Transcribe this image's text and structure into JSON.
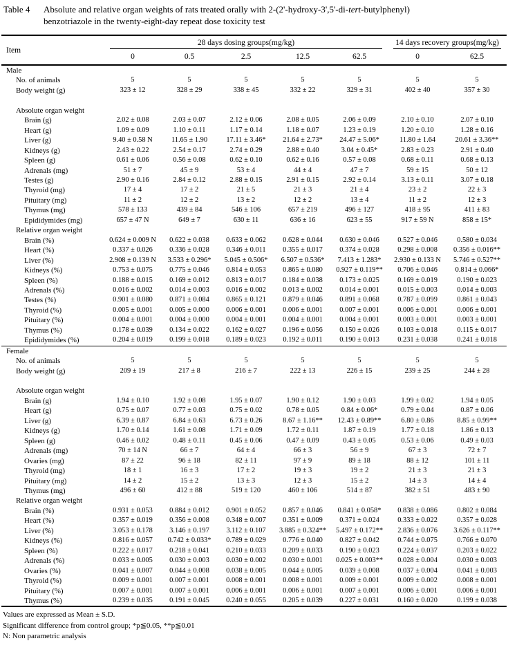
{
  "title": {
    "label": "Table 4",
    "line1_before_tert": "Absolute and relative organ weights of rats treated orally with 2-(2'-hydroxy-3',5'-di-",
    "line1_tert": "tert",
    "line1_after_tert": "-butylphenyl)",
    "line2": "benzotriazole in the twenty-eight-day repeat dose toxicity test"
  },
  "header": {
    "item_label": "Item",
    "groups": [
      {
        "label": "28 days dosing groups(mg/kg)",
        "doses": [
          "0",
          "0.5",
          "2.5",
          "12.5",
          "62.5"
        ]
      },
      {
        "label": "14 days recovery groups(mg/kg)",
        "doses": [
          "0",
          "62.5"
        ]
      }
    ]
  },
  "sections": [
    {
      "name": "Male",
      "rows": [
        {
          "label": "Male",
          "indent": 0
        },
        {
          "label": "No. of animals",
          "indent": 1,
          "values": [
            "5",
            "5",
            "5",
            "5",
            "5",
            "5",
            "5"
          ]
        },
        {
          "label": "Body weight (g)",
          "indent": 1,
          "values": [
            "323 ± 12",
            "328 ± 29",
            "338 ± 45",
            "332 ± 22",
            "329 ± 31",
            "402 ± 40",
            "357 ± 30"
          ]
        },
        {
          "label": "",
          "indent": 0
        },
        {
          "label": "Absolute organ weight",
          "indent": 1
        },
        {
          "label": "Brain (g)",
          "indent": 2,
          "values": [
            "2.02 ± 0.08",
            "2.03 ± 0.07",
            "2.12 ± 0.06",
            "2.08 ± 0.05",
            "2.06 ± 0.09",
            "2.10 ± 0.10",
            "2.07 ± 0.10"
          ]
        },
        {
          "label": "Heart (g)",
          "indent": 2,
          "values": [
            "1.09 ± 0.09",
            "1.10 ± 0.11",
            "1.17 ± 0.14",
            "1.18 ± 0.07",
            "1.23 ± 0.19",
            "1.20 ± 0.10",
            "1.28 ± 0.16"
          ]
        },
        {
          "label": "Liver (g)",
          "indent": 2,
          "values": [
            "9.40 ± 0.58 N",
            "11.65 ± 1.90",
            "17.11 ± 3.46*",
            "21.64 ± 2.73*",
            "24.47 ± 5.06*",
            "11.80 ± 1.64",
            "20.61 ± 3.36**"
          ]
        },
        {
          "label": "Kidneys (g)",
          "indent": 2,
          "values": [
            "2.43 ± 0.22",
            "2.54 ± 0.17",
            "2.74 ± 0.29",
            "2.88 ± 0.40",
            "3.04 ± 0.45*",
            "2.83 ± 0.23",
            "2.91 ± 0.40"
          ]
        },
        {
          "label": "Spleen (g)",
          "indent": 2,
          "values": [
            "0.61 ± 0.06",
            "0.56 ± 0.08",
            "0.62 ± 0.10",
            "0.62 ± 0.16",
            "0.57 ± 0.08",
            "0.68 ± 0.11",
            "0.68 ± 0.13"
          ]
        },
        {
          "label": "Adrenals (mg)",
          "indent": 2,
          "values": [
            "51 ± 7",
            "45 ± 9",
            "53 ± 4",
            "44 ± 4",
            "47 ± 7",
            "59 ± 15",
            "50 ± 12"
          ]
        },
        {
          "label": "Testes (g)",
          "indent": 2,
          "values": [
            "2.90 ± 0.16",
            "2.84 ± 0.12",
            "2.88 ± 0.15",
            "2.91 ± 0.15",
            "2.92 ± 0.14",
            "3.13 ± 0.11",
            "3.07 ± 0.18"
          ]
        },
        {
          "label": "Thyroid (mg)",
          "indent": 2,
          "values": [
            "17 ± 4",
            "17 ± 2",
            "21 ± 5",
            "21 ± 3",
            "21 ± 4",
            "23 ± 2",
            "22 ± 3"
          ]
        },
        {
          "label": "Pituitary (mg)",
          "indent": 2,
          "values": [
            "11 ± 2",
            "12 ± 2",
            "13 ± 2",
            "12 ± 2",
            "13 ± 4",
            "11 ± 2",
            "12 ± 3"
          ]
        },
        {
          "label": "Thymus (mg)",
          "indent": 2,
          "values": [
            "578 ± 133",
            "439 ± 84",
            "546 ± 106",
            "657 ± 219",
            "496 ± 127",
            "418 ± 95",
            "411 ± 83"
          ]
        },
        {
          "label": "Epididymides (mg)",
          "indent": 2,
          "values": [
            "657 ± 47 N",
            "649 ± 7",
            "630 ± 11",
            "636 ± 16",
            "623 ± 55",
            "917 ± 59 N",
            "858 ± 15*"
          ]
        },
        {
          "label": "Relative organ weight",
          "indent": 1
        },
        {
          "label": "Brain (%)",
          "indent": 2,
          "values": [
            "0.624 ± 0.009 N",
            "0.622 ± 0.038",
            "0.633 ± 0.062",
            "0.628 ± 0.044",
            "0.630 ± 0.046",
            "0.527 ± 0.046",
            "0.580 ± 0.034"
          ]
        },
        {
          "label": "Heart (%)",
          "indent": 2,
          "values": [
            "0.337 ± 0.026",
            "0.336 ± 0.028",
            "0.346 ± 0.011",
            "0.355 ± 0.017",
            "0.374 ± 0.028",
            "0.298 ± 0.008",
            "0.356 ± 0.016**"
          ]
        },
        {
          "label": "Liver (%)",
          "indent": 2,
          "values": [
            "2.908 ± 0.139 N",
            "3.533 ± 0.296*",
            "5.045 ± 0.506*",
            "6.507 ± 0.536*",
            "7.413 ± 1.283*",
            "2.930 ± 0.133 N",
            "5.746 ± 0.527**"
          ]
        },
        {
          "label": "Kidneys (%)",
          "indent": 2,
          "values": [
            "0.753 ± 0.075",
            "0.775 ± 0.046",
            "0.814 ± 0.053",
            "0.865 ± 0.080",
            "0.927 ± 0.119**",
            "0.706 ± 0.046",
            "0.814 ± 0.066*"
          ]
        },
        {
          "label": "Spleen (%)",
          "indent": 2,
          "values": [
            "0.188 ± 0.015",
            "0.169 ± 0.012",
            "0.813 ± 0.017",
            "0.184 ± 0.038",
            "0.173 ± 0.025",
            "0.169 ± 0.019",
            "0.190 ± 0.023"
          ]
        },
        {
          "label": "Adrenals (%)",
          "indent": 2,
          "values": [
            "0.016 ± 0.002",
            "0.014 ± 0.003",
            "0.016 ± 0.002",
            "0.013 ± 0.002",
            "0.014 ± 0.001",
            "0.015 ± 0.003",
            "0.014 ± 0.003"
          ]
        },
        {
          "label": "Testes (%)",
          "indent": 2,
          "values": [
            "0.901 ± 0.080",
            "0.871 ± 0.084",
            "0.865 ± 0.121",
            "0.879 ± 0.046",
            "0.891 ± 0.068",
            "0.787 ± 0.099",
            "0.861 ± 0.043"
          ]
        },
        {
          "label": "Thyroid (%)",
          "indent": 2,
          "values": [
            "0.005 ± 0.001",
            "0.005 ± 0.000",
            "0.006 ± 0.001",
            "0.006 ± 0.001",
            "0.007 ± 0.001",
            "0.006 ± 0.001",
            "0.006 ± 0.001"
          ]
        },
        {
          "label": "Pituitary (%)",
          "indent": 2,
          "values": [
            "0.004 ± 0.001",
            "0.004 ± 0.000",
            "0.004 ± 0.001",
            "0.004 ± 0.001",
            "0.004 ± 0.001",
            "0.003 ± 0.001",
            "0.003 ± 0.001"
          ]
        },
        {
          "label": "Thymus (%)",
          "indent": 2,
          "values": [
            "0.178 ± 0.039",
            "0.134 ± 0.022",
            "0.162 ± 0.027",
            "0.196 ± 0.056",
            "0.150 ± 0.026",
            "0.103 ± 0.018",
            "0.115 ± 0.017"
          ]
        },
        {
          "label": "Epididymides (%)",
          "indent": 2,
          "values": [
            "0.204 ± 0.019",
            "0.199 ± 0.018",
            "0.189 ± 0.023",
            "0.192 ± 0.011",
            "0.190 ± 0.013",
            "0.231 ± 0.038",
            "0.241 ± 0.018"
          ]
        }
      ]
    },
    {
      "name": "Female",
      "rows": [
        {
          "label": "Female",
          "indent": 0
        },
        {
          "label": "No. of animals",
          "indent": 1,
          "values": [
            "5",
            "5",
            "5",
            "5",
            "5",
            "5",
            "5"
          ]
        },
        {
          "label": "Body weight (g)",
          "indent": 1,
          "values": [
            "209 ± 19",
            "217 ± 8",
            "216 ± 7",
            "222 ± 13",
            "226 ± 15",
            "239 ± 25",
            "244 ± 28"
          ]
        },
        {
          "label": "",
          "indent": 0
        },
        {
          "label": "Absolute organ weight",
          "indent": 1
        },
        {
          "label": "Brain (g)",
          "indent": 2,
          "values": [
            "1.94 ± 0.10",
            "1.92 ± 0.08",
            "1.95 ± 0.07",
            "1.90 ± 0.12",
            "1.90 ± 0.03",
            "1.99 ± 0.02",
            "1.94 ± 0.05"
          ]
        },
        {
          "label": "Heart (g)",
          "indent": 2,
          "values": [
            "0.75 ± 0.07",
            "0.77 ± 0.03",
            "0.75 ± 0.02",
            "0.78 ± 0.05",
            "0.84 ± 0.06*",
            "0.79 ± 0.04",
            "0.87 ± 0.06"
          ]
        },
        {
          "label": "Liver (g)",
          "indent": 2,
          "values": [
            "6.39 ± 0.87",
            "6.84 ± 0.63",
            "6.73 ± 0.26",
            "8.67 ± 1.16**",
            "12.43 ± 0.89**",
            "6.80 ± 0.86",
            "8.85 ± 0.99**"
          ]
        },
        {
          "label": "Kidneys (g)",
          "indent": 2,
          "values": [
            "1.70 ± 0.14",
            "1.61 ± 0.08",
            "1.71 ± 0.09",
            "1.72 ± 0.11",
            "1.87 ± 0.19",
            "1.77 ± 0.18",
            "1.86 ± 0.13"
          ]
        },
        {
          "label": "Spleen (g)",
          "indent": 2,
          "values": [
            "0.46 ± 0.02",
            "0.48 ± 0.11",
            "0.45 ± 0.06",
            "0.47 ± 0.09",
            "0.43 ± 0.05",
            "0.53 ± 0.06",
            "0.49 ± 0.03"
          ]
        },
        {
          "label": "Adrenals (mg)",
          "indent": 2,
          "values": [
            "70 ± 14 N",
            "66 ± 7",
            "64 ± 4",
            "66 ± 3",
            "56 ± 9",
            "67 ± 3",
            "72 ± 7"
          ]
        },
        {
          "label": "Ovaries (mg)",
          "indent": 2,
          "values": [
            "87 ± 22",
            "96 ± 18",
            "82 ± 11",
            "97 ± 9",
            "89 ± 18",
            "88 ± 12",
            "101 ± 11"
          ]
        },
        {
          "label": "Thyroid (mg)",
          "indent": 2,
          "values": [
            "18 ± 1",
            "16 ± 3",
            "17 ± 2",
            "19 ± 3",
            "19 ± 2",
            "21 ± 3",
            "21 ± 3"
          ]
        },
        {
          "label": "Pituitary (mg)",
          "indent": 2,
          "values": [
            "14 ± 2",
            "15 ± 2",
            "13 ± 3",
            "12 ± 3",
            "15 ± 2",
            "14 ± 3",
            "14 ± 4"
          ]
        },
        {
          "label": "Thymus (mg)",
          "indent": 2,
          "values": [
            "496 ± 60",
            "412 ± 88",
            "519 ± 120",
            "460 ± 106",
            "514 ± 87",
            "382 ± 51",
            "483 ± 90"
          ]
        },
        {
          "label": "Relative organ weight",
          "indent": 1
        },
        {
          "label": "Brain (%)",
          "indent": 2,
          "values": [
            "0.931 ± 0.053",
            "0.884 ± 0.012",
            "0.901 ± 0.052",
            "0.857 ± 0.046",
            "0.841 ± 0.058*",
            "0.838 ± 0.086",
            "0.802 ± 0.084"
          ]
        },
        {
          "label": "Heart (%)",
          "indent": 2,
          "values": [
            "0.357 ± 0.019",
            "0.356 ± 0.008",
            "0.348 ± 0.007",
            "0.351 ± 0.009",
            "0.371 ± 0.024",
            "0.333 ± 0.022",
            "0.357 ± 0.028"
          ]
        },
        {
          "label": "Liver (%)",
          "indent": 2,
          "values": [
            "3.053 ± 0.178",
            "3.146 ± 0.197",
            "3.112 ± 0.107",
            "3.885 ± 0.324**",
            "5.497 ± 0.172**",
            "2.836 ± 0.076",
            "3.626 ± 0.117**"
          ]
        },
        {
          "label": "Kidneys (%)",
          "indent": 2,
          "values": [
            "0.816 ± 0.057",
            "0.742 ± 0.033*",
            "0.789 ± 0.029",
            "0.776 ± 0.040",
            "0.827 ± 0.042",
            "0.744 ± 0.075",
            "0.766 ± 0.070"
          ]
        },
        {
          "label": "Spleen (%)",
          "indent": 2,
          "values": [
            "0.222 ± 0.017",
            "0.218 ± 0.041",
            "0.210 ± 0.033",
            "0.209 ± 0.033",
            "0.190 ± 0.023",
            "0.224 ± 0.037",
            "0.203 ± 0.022"
          ]
        },
        {
          "label": "Adrenals (%)",
          "indent": 2,
          "values": [
            "0.033 ± 0.005",
            "0.030 ± 0.003",
            "0.030 ± 0.002",
            "0.030 ± 0.001",
            "0.025 ± 0.003**",
            "0.028 ± 0.004",
            "0.030 ± 0.003"
          ]
        },
        {
          "label": "Ovaries (%)",
          "indent": 2,
          "values": [
            "0.041 ± 0.007",
            "0.044 ± 0.008",
            "0.038 ± 0.005",
            "0.044 ± 0.005",
            "0.039 ± 0.008",
            "0.037 ± 0.004",
            "0.041 ± 0.003"
          ]
        },
        {
          "label": "Thyroid (%)",
          "indent": 2,
          "values": [
            "0.009 ± 0.001",
            "0.007 ± 0.001",
            "0.008 ± 0.001",
            "0.008 ± 0.001",
            "0.009 ± 0.001",
            "0.009 ± 0.002",
            "0.008 ± 0.001"
          ]
        },
        {
          "label": "Pituitary (%)",
          "indent": 2,
          "values": [
            "0.007 ± 0.001",
            "0.007 ± 0.001",
            "0.006 ± 0.001",
            "0.006 ± 0.001",
            "0.007 ± 0.001",
            "0.006 ± 0.001",
            "0.006 ± 0.001"
          ]
        },
        {
          "label": "Thymus (%)",
          "indent": 2,
          "values": [
            "0.239 ± 0.035",
            "0.191 ± 0.045",
            "0.240 ± 0.055",
            "0.205 ± 0.039",
            "0.227 ± 0.031",
            "0.160 ± 0.020",
            "0.199 ± 0.038"
          ]
        }
      ]
    }
  ],
  "footnotes": [
    "Values are expressed as Mean ± S.D.",
    "Significant difference from control group; *p≦0.05, **p≦0.01",
    "N: Non parametric analysis"
  ]
}
